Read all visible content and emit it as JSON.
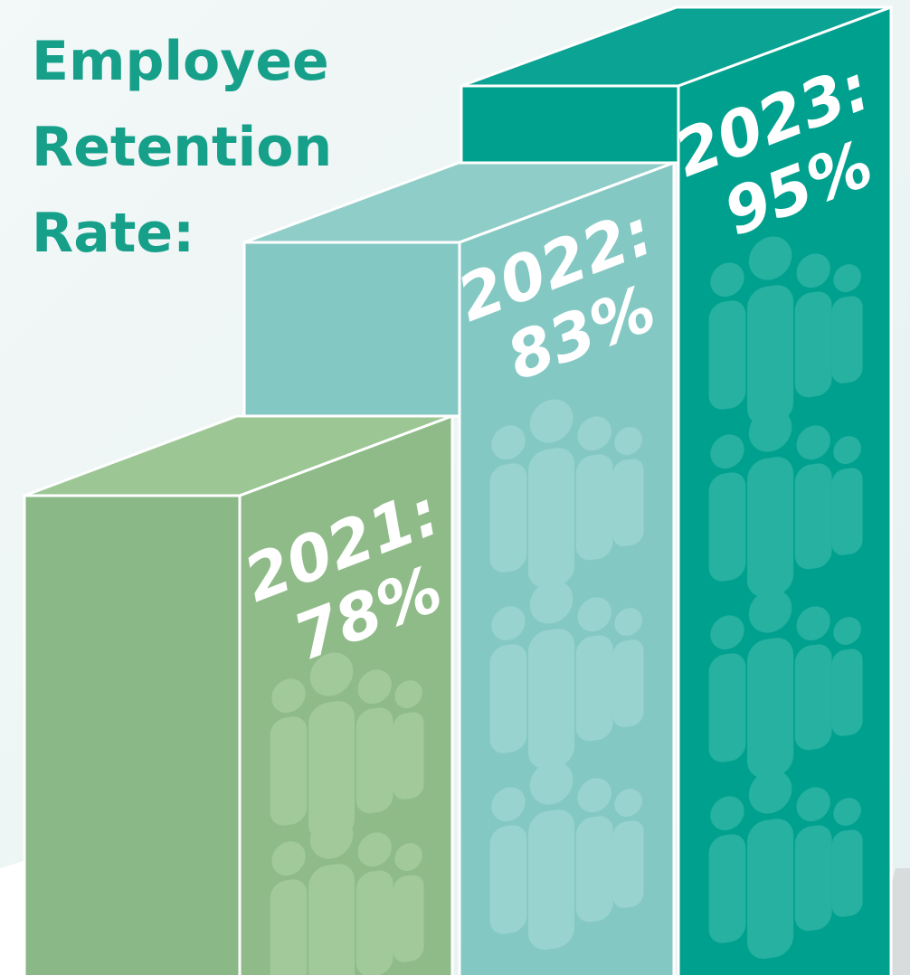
{
  "title": [
    "Employee",
    "Retention",
    "Rate:"
  ],
  "bars": [
    {
      "year": "2021:",
      "rate": "78%"
    },
    {
      "year": "2022:",
      "rate": "83%"
    },
    {
      "year": "2023:",
      "rate": "95%"
    }
  ]
}
